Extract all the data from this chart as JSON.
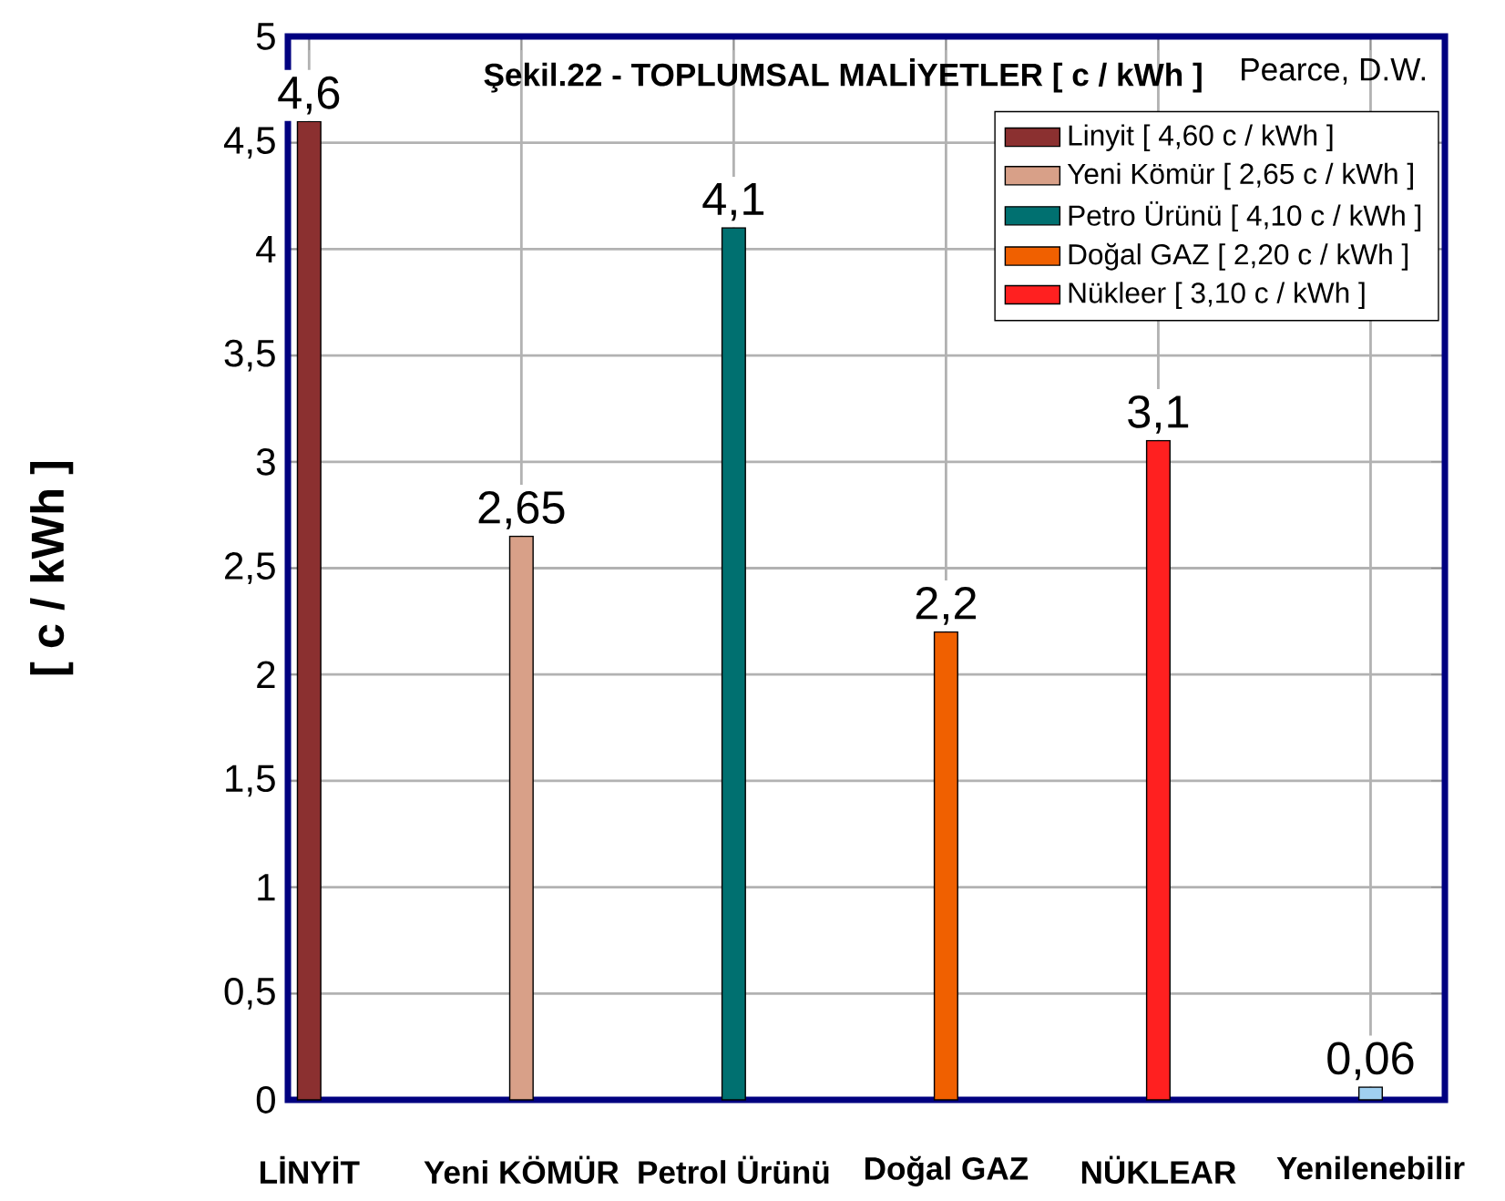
{
  "chart_data": {
    "type": "bar",
    "title": "Şekil.22 - TOPLUMSAL MALİYETLER [ c / kWh ]",
    "ylabel": "[ c / kWh ]",
    "annotations": [
      "Pearce, D.W."
    ],
    "categories": [
      "LİNYİT",
      "Yeni KÖMÜR",
      "Petrol Ürünü",
      "Doğal GAZ",
      "NÜKLEAR",
      "Yenilenebilir"
    ],
    "series": [
      {
        "name": "Linyit [ 4,60 c / kWh ]",
        "color": "#8b3030",
        "values": [
          4.6,
          null,
          null,
          null,
          null,
          null
        ],
        "value_labels": [
          "4,6",
          null,
          null,
          null,
          null,
          null
        ]
      },
      {
        "name": "Yeni Kömür [ 2,65 c / kWh ]",
        "color": "#d8a088",
        "values": [
          null,
          2.65,
          null,
          null,
          null,
          null
        ],
        "value_labels": [
          null,
          "2,65",
          null,
          null,
          null,
          null
        ]
      },
      {
        "name": "Petro Ürünü [ 4,10 c / kWh ]",
        "color": "#007070",
        "values": [
          null,
          null,
          4.1,
          null,
          null,
          null
        ],
        "value_labels": [
          null,
          null,
          "4,1",
          null,
          null,
          null
        ]
      },
      {
        "name": "Doğal GAZ [ 2,20 c / kWh ]",
        "color": "#f06000",
        "values": [
          null,
          null,
          null,
          2.2,
          null,
          null
        ],
        "value_labels": [
          null,
          null,
          null,
          "2,2",
          null,
          null
        ]
      },
      {
        "name": "Nükleer [ 3,10 c / kWh ]",
        "color": "#ff2020",
        "values": [
          null,
          null,
          null,
          null,
          3.1,
          null
        ],
        "value_labels": [
          null,
          null,
          null,
          null,
          "3,1",
          null
        ]
      },
      {
        "color": "#a0d0f0",
        "values": [
          null,
          null,
          null,
          null,
          null,
          0.06
        ],
        "value_labels": [
          null,
          null,
          null,
          null,
          null,
          "0,06"
        ]
      }
    ],
    "ylim": [
      0,
      5
    ],
    "yticks": [
      0,
      {
        "value": 0.5,
        "label": "0,5"
      },
      1,
      {
        "value": 1.5,
        "label": "1,5"
      },
      2,
      {
        "value": 2.5,
        "label": "2,5"
      },
      3,
      {
        "value": 3.5,
        "label": "3,5"
      },
      4,
      {
        "value": 4.5,
        "label": "4,5"
      },
      5
    ],
    "grid": true,
    "legend": "top right"
  }
}
